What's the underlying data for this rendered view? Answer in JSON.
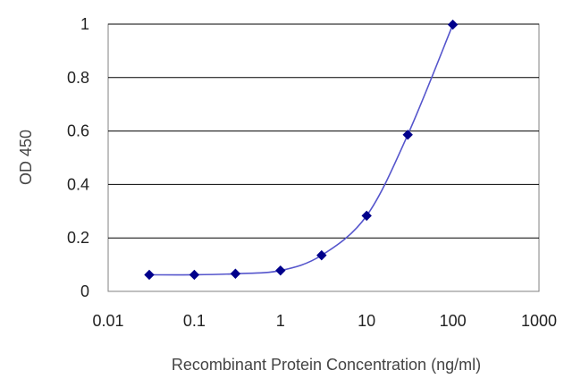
{
  "chart_data": {
    "type": "line",
    "title": "",
    "xlabel": "Recombinant Protein Concentration (ng/ml)",
    "ylabel": "OD 450",
    "x_scale": "log",
    "xlim": [
      0.01,
      1000
    ],
    "ylim": [
      0,
      1
    ],
    "x_ticks": [
      "0.01",
      "0.1",
      "1",
      "10",
      "100",
      "1000"
    ],
    "y_ticks": [
      "0",
      "0.2",
      "0.4",
      "0.6",
      "0.8",
      "1"
    ],
    "grid": "horizontal",
    "legend": "none",
    "series": [
      {
        "x": [
          0.03,
          0.1,
          0.3,
          1,
          3,
          10,
          30,
          100
        ],
        "y": [
          0.062,
          0.062,
          0.066,
          0.078,
          0.135,
          0.283,
          0.586,
          0.998
        ],
        "color": "#00008b",
        "line_color": "#5555cc",
        "marker": "diamond"
      }
    ]
  }
}
